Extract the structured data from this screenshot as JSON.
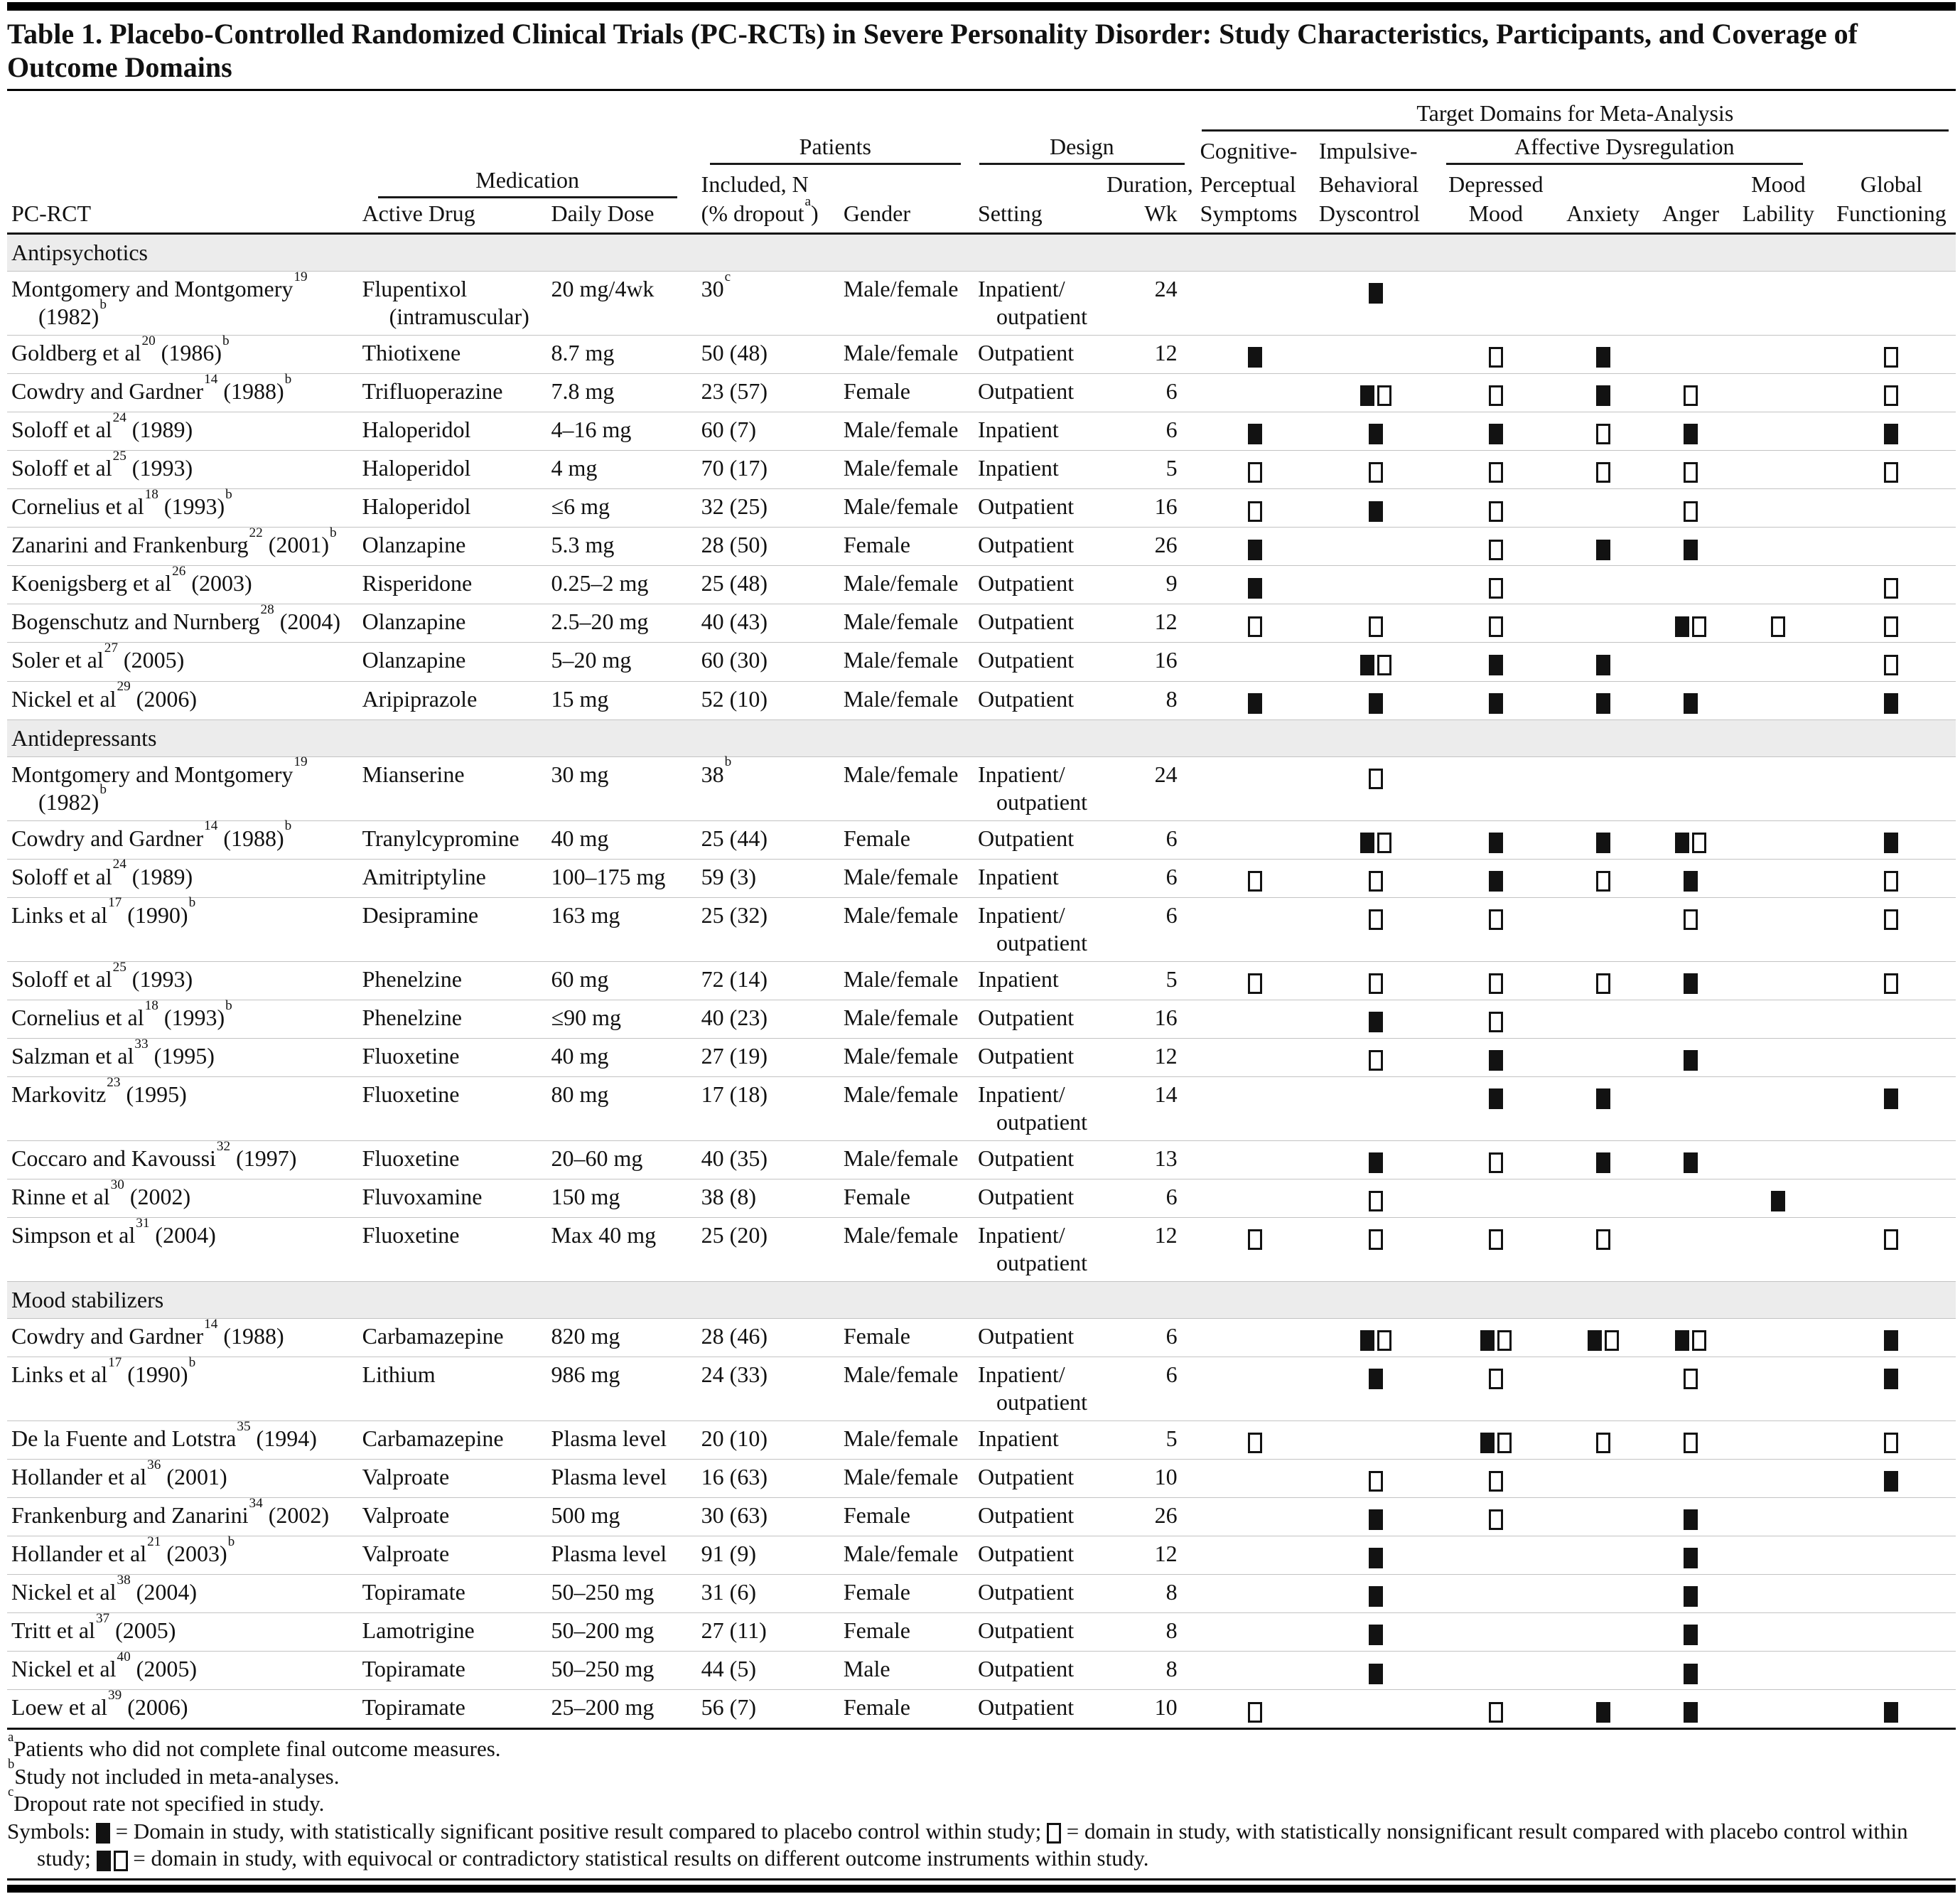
{
  "title": "Table 1. Placebo-Controlled Randomized Clinical Trials (PC-RCTs) in Severe Personality Disorder: Study Characteristics, Participants, and Coverage of Outcome Domains",
  "header": {
    "target_domains": "Target Domains for Meta-Analysis",
    "patients": "Patients",
    "design": "Design",
    "medication": "Medication",
    "affective": "Affective Dysregulation",
    "pc_rct": "PC-RCT",
    "active_drug": "Active Drug",
    "daily_dose": "Daily Dose",
    "included1": "Included, N",
    "dropout_pre": "(% dropout",
    "dropout_sup": "a",
    "dropout_post": ")",
    "gender": "Gender",
    "setting": "Setting",
    "duration1": "Duration,",
    "duration2": "Wk",
    "cognitive1": "Cognitive-",
    "cognitive2": "Perceptual",
    "cognitive3": "Symptoms",
    "impulsive1": "Impulsive-",
    "impulsive2": "Behavioral",
    "impulsive3": "Dyscontrol",
    "depressed1": "Depressed",
    "depressed2": "Mood",
    "anxiety": "Anxiety",
    "anger": "Anger",
    "mood1": "Mood",
    "mood2": "Lability",
    "global1": "Global",
    "global2": "Functioning"
  },
  "domain_keys": [
    "cognitive",
    "impulsive",
    "depressed",
    "anxiety",
    "anger",
    "mood-lability",
    "global"
  ],
  "symbol_codes": {
    "f": "filled-square",
    "o": "open-square",
    "fo": "filled-and-open-squares"
  },
  "colors": {
    "ink": "#111111",
    "section_band": "#ececec",
    "row_rule": "#c3c3c3"
  },
  "sections": [
    {
      "name": "Antipsychotics",
      "rows": [
        {
          "study": "Montgomery and Montgomery^19^",
          "study2": "(1982)^b^",
          "drug": "Flupentixol",
          "drug2": "(intramuscular)",
          "dose": "20 mg/4wk",
          "n": "30^c^",
          "gender": "Male/female",
          "setting": [
            "Inpatient/",
            "outpatient"
          ],
          "dur": "24",
          "d": [
            "",
            "f",
            "",
            "",
            "",
            "",
            ""
          ]
        },
        {
          "study": "Goldberg et al^20^ (1986)^b^",
          "drug": "Thiotixene",
          "dose": "8.7 mg",
          "n": "50 (48)",
          "gender": "Male/female",
          "setting": [
            "Outpatient"
          ],
          "dur": "12",
          "d": [
            "f",
            "",
            "o",
            "f",
            "",
            "",
            "o"
          ]
        },
        {
          "study": "Cowdry and Gardner^14^ (1988)^b^",
          "drug": "Trifluoperazine",
          "dose": "7.8 mg",
          "n": "23 (57)",
          "gender": "Female",
          "setting": [
            "Outpatient"
          ],
          "dur": "6",
          "d": [
            "",
            "fo",
            "o",
            "f",
            "o",
            "",
            "o"
          ]
        },
        {
          "study": "Soloff et al^24^ (1989)",
          "drug": "Haloperidol",
          "dose": "4–16 mg",
          "n": "60 (7)",
          "gender": "Male/female",
          "setting": [
            "Inpatient"
          ],
          "dur": "6",
          "d": [
            "f",
            "f",
            "f",
            "o",
            "f",
            "",
            "f"
          ]
        },
        {
          "study": "Soloff et al^25^ (1993)",
          "drug": "Haloperidol",
          "dose": "4 mg",
          "n": "70 (17)",
          "gender": "Male/female",
          "setting": [
            "Inpatient"
          ],
          "dur": "5",
          "d": [
            "o",
            "o",
            "o",
            "o",
            "o",
            "",
            "o"
          ]
        },
        {
          "study": "Cornelius et al^18^ (1993)^b^",
          "drug": "Haloperidol",
          "dose": "≤6 mg",
          "n": "32 (25)",
          "gender": "Male/female",
          "setting": [
            "Outpatient"
          ],
          "dur": "16",
          "d": [
            "o",
            "f",
            "o",
            "",
            "o",
            "",
            ""
          ]
        },
        {
          "study": "Zanarini and Frankenburg^22^ (2001)^b^",
          "drug": "Olanzapine",
          "dose": "5.3 mg",
          "n": "28 (50)",
          "gender": "Female",
          "setting": [
            "Outpatient"
          ],
          "dur": "26",
          "d": [
            "f",
            "",
            "o",
            "f",
            "f",
            "",
            ""
          ]
        },
        {
          "study": "Koenigsberg et al^26^ (2003)",
          "drug": "Risperidone",
          "dose": "0.25–2 mg",
          "n": "25 (48)",
          "gender": "Male/female",
          "setting": [
            "Outpatient"
          ],
          "dur": "9",
          "d": [
            "f",
            "",
            "o",
            "",
            "",
            "",
            "o"
          ]
        },
        {
          "study": "Bogenschutz and Nurnberg^28^ (2004)",
          "drug": "Olanzapine",
          "dose": "2.5–20 mg",
          "n": "40 (43)",
          "gender": "Male/female",
          "setting": [
            "Outpatient"
          ],
          "dur": "12",
          "d": [
            "o",
            "o",
            "o",
            "",
            "fo",
            "o",
            "o"
          ]
        },
        {
          "study": "Soler et al^27^ (2005)",
          "drug": "Olanzapine",
          "dose": "5–20 mg",
          "n": "60 (30)",
          "gender": "Male/female",
          "setting": [
            "Outpatient"
          ],
          "dur": "16",
          "d": [
            "",
            "fo",
            "f",
            "f",
            "",
            "",
            "o"
          ]
        },
        {
          "study": "Nickel et al^29^ (2006)",
          "drug": "Aripiprazole",
          "dose": "15 mg",
          "n": "52 (10)",
          "gender": "Male/female",
          "setting": [
            "Outpatient"
          ],
          "dur": "8",
          "d": [
            "f",
            "f",
            "f",
            "f",
            "f",
            "",
            "f"
          ]
        }
      ]
    },
    {
      "name": "Antidepressants",
      "rows": [
        {
          "study": "Montgomery and Montgomery^19^",
          "study2": "(1982)^b^",
          "drug": "Mianserine",
          "dose": "30 mg",
          "n": "38^b^",
          "gender": "Male/female",
          "setting": [
            "Inpatient/",
            "outpatient"
          ],
          "dur": "24",
          "d": [
            "",
            "o",
            "",
            "",
            "",
            "",
            ""
          ]
        },
        {
          "study": "Cowdry and Gardner^14^ (1988)^b^",
          "drug": "Tranylcypromine",
          "dose": "40 mg",
          "n": "25 (44)",
          "gender": "Female",
          "setting": [
            "Outpatient"
          ],
          "dur": "6",
          "d": [
            "",
            "fo",
            "f",
            "f",
            "fo",
            "",
            "f"
          ]
        },
        {
          "study": "Soloff et al^24^ (1989)",
          "drug": "Amitriptyline",
          "dose": "100–175 mg",
          "n": "59 (3)",
          "gender": "Male/female",
          "setting": [
            "Inpatient"
          ],
          "dur": "6",
          "d": [
            "o",
            "o",
            "f",
            "o",
            "f",
            "",
            "o"
          ]
        },
        {
          "study": "Links et al^17^ (1990)^b^",
          "drug": "Desipramine",
          "dose": "163 mg",
          "n": "25 (32)",
          "gender": "Male/female",
          "setting": [
            "Inpatient/",
            "outpatient"
          ],
          "dur": "6",
          "d": [
            "",
            "o",
            "o",
            "",
            "o",
            "",
            "o"
          ]
        },
        {
          "study": "Soloff et al^25^ (1993)",
          "drug": "Phenelzine",
          "dose": "60 mg",
          "n": "72 (14)",
          "gender": "Male/female",
          "setting": [
            "Inpatient"
          ],
          "dur": "5",
          "d": [
            "o",
            "o",
            "o",
            "o",
            "f",
            "",
            "o"
          ]
        },
        {
          "study": "Cornelius et al^18^ (1993)^b^",
          "drug": "Phenelzine",
          "dose": "≤90 mg",
          "n": "40 (23)",
          "gender": "Male/female",
          "setting": [
            "Outpatient"
          ],
          "dur": "16",
          "d": [
            "",
            "f",
            "o",
            "",
            "",
            "",
            ""
          ]
        },
        {
          "study": "Salzman et al^33^ (1995)",
          "drug": "Fluoxetine",
          "dose": "40 mg",
          "n": "27 (19)",
          "gender": "Male/female",
          "setting": [
            "Outpatient"
          ],
          "dur": "12",
          "d": [
            "",
            "o",
            "f",
            "",
            "f",
            "",
            ""
          ]
        },
        {
          "study": "Markovitz^23^ (1995)",
          "drug": "Fluoxetine",
          "dose": "80 mg",
          "n": "17 (18)",
          "gender": "Male/female",
          "setting": [
            "Inpatient/",
            "outpatient"
          ],
          "dur": "14",
          "d": [
            "",
            "",
            "f",
            "f",
            "",
            "",
            "f"
          ]
        },
        {
          "study": "Coccaro and Kavoussi^32^ (1997)",
          "drug": "Fluoxetine",
          "dose": "20–60 mg",
          "n": "40 (35)",
          "gender": "Male/female",
          "setting": [
            "Outpatient"
          ],
          "dur": "13",
          "d": [
            "",
            "f",
            "o",
            "f",
            "f",
            "",
            ""
          ]
        },
        {
          "study": "Rinne et al^30^ (2002)",
          "drug": "Fluvoxamine",
          "dose": "150 mg",
          "n": "38 (8)",
          "gender": "Female",
          "setting": [
            "Outpatient"
          ],
          "dur": "6",
          "d": [
            "",
            "o",
            "",
            "",
            "",
            "f",
            ""
          ]
        },
        {
          "study": "Simpson et al^31^ (2004)",
          "drug": "Fluoxetine",
          "dose": "Max 40 mg",
          "n": "25 (20)",
          "gender": "Male/female",
          "setting": [
            "Inpatient/",
            "outpatient"
          ],
          "dur": "12",
          "d": [
            "o",
            "o",
            "o",
            "o",
            "",
            "",
            "o"
          ]
        }
      ]
    },
    {
      "name": "Mood stabilizers",
      "rows": [
        {
          "study": "Cowdry and Gardner^14^ (1988)",
          "drug": "Carbamazepine",
          "dose": "820 mg",
          "n": "28 (46)",
          "gender": "Female",
          "setting": [
            "Outpatient"
          ],
          "dur": "6",
          "d": [
            "",
            "fo",
            "fo",
            "fo",
            "fo",
            "",
            "f"
          ]
        },
        {
          "study": "Links et al^17^ (1990)^b^",
          "drug": "Lithium",
          "dose": "986 mg",
          "n": "24 (33)",
          "gender": "Male/female",
          "setting": [
            "Inpatient/",
            "outpatient"
          ],
          "dur": "6",
          "d": [
            "",
            "f",
            "o",
            "",
            "o",
            "",
            "f"
          ]
        },
        {
          "study": "De la Fuente and Lotstra^35^ (1994)",
          "drug": "Carbamazepine",
          "dose": "Plasma level",
          "n": "20 (10)",
          "gender": "Male/female",
          "setting": [
            "Inpatient"
          ],
          "dur": "5",
          "d": [
            "o",
            "",
            "fo",
            "o",
            "o",
            "",
            "o"
          ]
        },
        {
          "study": "Hollander et al^36^ (2001)",
          "drug": "Valproate",
          "dose": "Plasma level",
          "n": "16 (63)",
          "gender": "Male/female",
          "setting": [
            "Outpatient"
          ],
          "dur": "10",
          "d": [
            "",
            "o",
            "o",
            "",
            "",
            "",
            "f"
          ]
        },
        {
          "study": "Frankenburg and Zanarini^34^ (2002)",
          "drug": "Valproate",
          "dose": "500 mg",
          "n": "30 (63)",
          "gender": "Female",
          "setting": [
            "Outpatient"
          ],
          "dur": "26",
          "d": [
            "",
            "f",
            "o",
            "",
            "f",
            "",
            ""
          ]
        },
        {
          "study": "Hollander et al^21^ (2003)^b^",
          "drug": "Valproate",
          "dose": "Plasma level",
          "n": "91 (9)",
          "gender": "Male/female",
          "setting": [
            "Outpatient"
          ],
          "dur": "12",
          "d": [
            "",
            "f",
            "",
            "",
            "f",
            "",
            ""
          ]
        },
        {
          "study": "Nickel et al^38^ (2004)",
          "drug": "Topiramate",
          "dose": "50–250 mg",
          "n": "31 (6)",
          "gender": "Female",
          "setting": [
            "Outpatient"
          ],
          "dur": "8",
          "d": [
            "",
            "f",
            "",
            "",
            "f",
            "",
            ""
          ]
        },
        {
          "study": "Tritt et al^37^ (2005)",
          "drug": "Lamotrigine",
          "dose": "50–200 mg",
          "n": "27 (11)",
          "gender": "Female",
          "setting": [
            "Outpatient"
          ],
          "dur": "8",
          "d": [
            "",
            "f",
            "",
            "",
            "f",
            "",
            ""
          ]
        },
        {
          "study": "Nickel et al^40^ (2005)",
          "drug": "Topiramate",
          "dose": "50–250 mg",
          "n": "44 (5)",
          "gender": "Male",
          "setting": [
            "Outpatient"
          ],
          "dur": "8",
          "d": [
            "",
            "f",
            "",
            "",
            "f",
            "",
            ""
          ]
        },
        {
          "study": "Loew et al^39^ (2006)",
          "drug": "Topiramate",
          "dose": "25–200 mg",
          "n": "56 (7)",
          "gender": "Female",
          "setting": [
            "Outpatient"
          ],
          "dur": "10",
          "d": [
            "o",
            "",
            "o",
            "f",
            "f",
            "",
            "f"
          ]
        }
      ]
    }
  ],
  "footnotes": [
    {
      "sup": "a",
      "text": "Patients who did not complete final outcome measures."
    },
    {
      "sup": "b",
      "text": "Study not included in meta-analyses."
    },
    {
      "sup": "c",
      "text": "Dropout rate not specified in study."
    }
  ],
  "legend": {
    "lead": "Symbols:",
    "filled_def": "= Domain in study, with statistically significant positive result compared to placebo control within study;",
    "open_def": "= domain in study, with statistically nonsignificant result compared with placebo control within study;",
    "pair_def": "= domain in study, with equivocal or contradictory statistical results on different outcome instruments within study."
  }
}
